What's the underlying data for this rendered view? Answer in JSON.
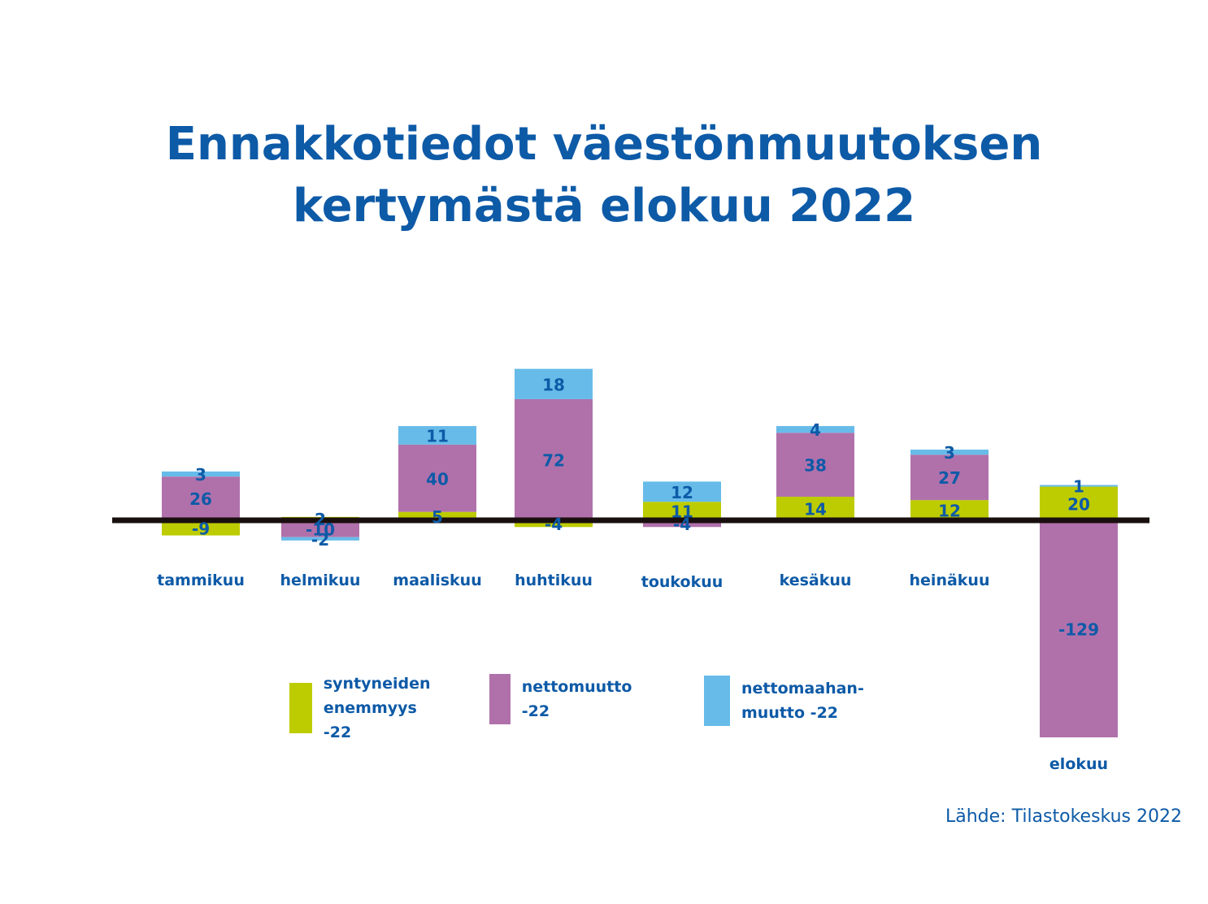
{
  "title_line1": "Ennakkotiedot väestönmuutoksen",
  "title_line2": "kertymästä elokuu 2022",
  "source": "Lähde: Tilastokeskus 2022",
  "colors": {
    "title": "#0d5aa7",
    "syntyneiden": "#bdcc00",
    "nettomuutto": "#b071ab",
    "nettomaahanmuutto": "#67bbe9",
    "axis": "#1a0f0f"
  },
  "legend": {
    "syntyneiden": "syntyneiden\nenemmyys -22",
    "nettomuutto": "nettomuutto -22",
    "nettomaahanmuutto": "nettomaahan-\nmuutto -22"
  },
  "chart_data": {
    "type": "bar",
    "stacked": true,
    "title": "Ennakkotiedot väestönmuutoksen kertymästä elokuu 2022",
    "categories": [
      "tammikuu",
      "helmikuu",
      "maaliskuu",
      "huhtikuu",
      "toukokuu",
      "kesäkuu",
      "heinäkuu",
      "elokuu"
    ],
    "series": [
      {
        "name": "syntyneiden enemmyys -22",
        "values": [
          -9,
          2,
          5,
          -4,
          11,
          14,
          12,
          20
        ]
      },
      {
        "name": "nettomuutto -22",
        "values": [
          26,
          -10,
          40,
          72,
          -4,
          38,
          27,
          -129
        ]
      },
      {
        "name": "nettomaahanmuutto -22",
        "values": [
          3,
          -2,
          11,
          18,
          12,
          4,
          3,
          1
        ]
      }
    ],
    "grid": false,
    "legend_position": "bottom-center"
  }
}
